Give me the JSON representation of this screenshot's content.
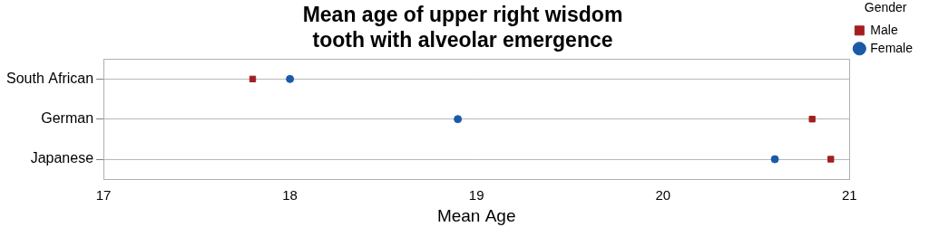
{
  "chart_data": {
    "type": "scatter",
    "orientation": "horizontal",
    "title": [
      "Mean age of upper right wisdom",
      "tooth with alveolar emergence"
    ],
    "x_label": "Mean Age",
    "categories": [
      "South African",
      "German",
      "Japanese"
    ],
    "series": [
      {
        "name": "Male",
        "color": "#a31f1f",
        "marker": "square",
        "values": [
          17.8,
          20.8,
          20.9
        ]
      },
      {
        "name": "Female",
        "color": "#1a5aa6",
        "marker": "circle",
        "values": [
          18.0,
          18.9,
          20.6
        ]
      }
    ],
    "xlim": [
      17,
      21
    ],
    "xticks": [
      17,
      18,
      19,
      20,
      21
    ],
    "grid": "y",
    "legend": "right",
    "legend_title": "Gender"
  }
}
